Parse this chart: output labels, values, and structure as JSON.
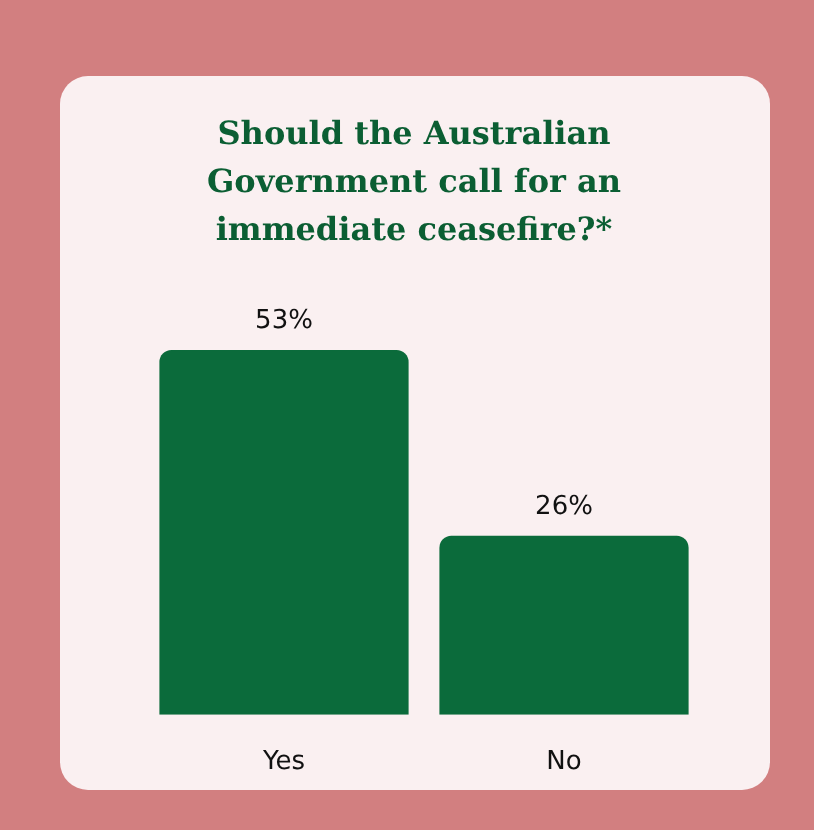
{
  "chart_data": {
    "type": "bar",
    "title": "Should the Australian Government call for an immediate ceasefire?*",
    "categories": [
      "Yes",
      "No"
    ],
    "values": [
      53,
      26
    ],
    "value_labels": [
      "53%",
      "26%"
    ],
    "color": "#0b6b3b",
    "tick_labels": "x"
  }
}
